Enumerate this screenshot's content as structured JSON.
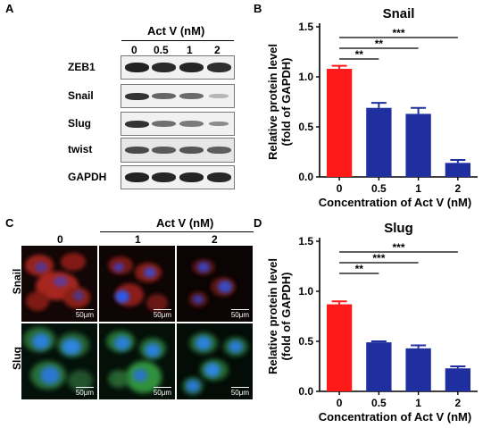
{
  "panels": {
    "a": "A",
    "b": "B",
    "c": "C",
    "d": "D"
  },
  "blot": {
    "header": "Act V (nM)",
    "lanes": [
      "0",
      "0.5",
      "1",
      "2"
    ],
    "rows": [
      "ZEB1",
      "Snail",
      "Slug",
      "twist",
      "GAPDH"
    ]
  },
  "micro": {
    "header": "Act V (nM)",
    "columns": [
      "0",
      "1",
      "2"
    ],
    "rows": [
      "Snail",
      "Slug"
    ],
    "scale": "50μm"
  },
  "colors": {
    "control": "#ff1a1a",
    "treated": "#1f2fa0",
    "snail_stain": "#c02820",
    "slug_stain": "#1fa03a",
    "nucleus": "#1e5cff"
  },
  "chart_data": [
    {
      "type": "bar",
      "title": "Snail",
      "categories": [
        "0",
        "0.5",
        "1",
        "2"
      ],
      "values": [
        1.08,
        0.69,
        0.63,
        0.14
      ],
      "errors": [
        0.03,
        0.05,
        0.06,
        0.03
      ],
      "xlabel": "Concentration of Act V (nM)",
      "ylabel": [
        "Relative protein level",
        "(fold of GAPDH)"
      ],
      "ylim": [
        0,
        1.5
      ],
      "yticks": [
        "0.0",
        "0.5",
        "1.0",
        "1.5"
      ],
      "significance": [
        {
          "from": "0",
          "to": "0.5",
          "label": "**"
        },
        {
          "from": "0",
          "to": "1",
          "label": "**"
        },
        {
          "from": "0",
          "to": "2",
          "label": "***"
        }
      ]
    },
    {
      "type": "bar",
      "title": "Slug",
      "categories": [
        "0",
        "0.5",
        "1",
        "2"
      ],
      "values": [
        0.87,
        0.49,
        0.43,
        0.23
      ],
      "errors": [
        0.03,
        0.01,
        0.03,
        0.02
      ],
      "xlabel": "Concentration of Act V (nM)",
      "ylabel": [
        "Relative protein level",
        "(fold of GAPDH)"
      ],
      "ylim": [
        0,
        1.5
      ],
      "yticks": [
        "0.0",
        "0.5",
        "1.0",
        "1.5"
      ],
      "significance": [
        {
          "from": "0",
          "to": "0.5",
          "label": "**"
        },
        {
          "from": "0",
          "to": "1",
          "label": "***"
        },
        {
          "from": "0",
          "to": "2",
          "label": "***"
        }
      ]
    }
  ]
}
